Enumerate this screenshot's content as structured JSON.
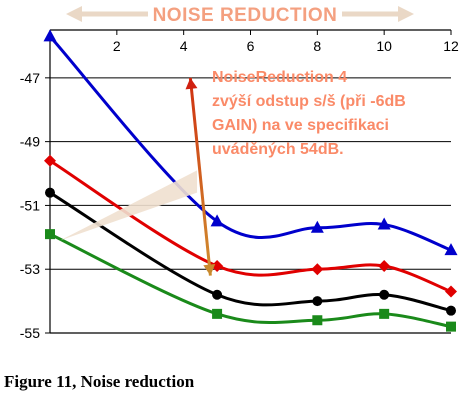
{
  "caption": "Figure 11, Noise reduction",
  "chart_data": {
    "type": "line",
    "title": "NOISE REDUCTION",
    "x": [
      0,
      5,
      8,
      10,
      12
    ],
    "x_ticks": [
      2,
      4,
      6,
      8,
      10,
      12
    ],
    "y_ticks": [
      -47,
      -49,
      -51,
      -53,
      -55
    ],
    "xlim": [
      0,
      12
    ],
    "ylim": [
      -55,
      -45.5
    ],
    "grid": "horizontal",
    "smooth": true,
    "series": [
      {
        "color": "#0000cc",
        "marker": "triangle",
        "values": [
          -45.7,
          -51.5,
          -51.7,
          -51.6,
          -52.4
        ]
      },
      {
        "color": "#e00000",
        "marker": "diamond",
        "values": [
          -49.6,
          -52.9,
          -53.0,
          -52.9,
          -53.7
        ]
      },
      {
        "color": "#000000",
        "marker": "circle",
        "values": [
          -50.6,
          -53.8,
          -54.0,
          -53.8,
          -54.3
        ]
      },
      {
        "color": "#1a8a1a",
        "marker": "square",
        "values": [
          -51.9,
          -54.4,
          -54.6,
          -54.4,
          -54.8
        ]
      }
    ],
    "annotation": {
      "lines": [
        "NoiseReduction 4",
        "zvýší odstup s/š (při -6dB",
        "GAIN) na ve specifikaci",
        "uváděných 54dB."
      ],
      "arrow_from": [
        4.2,
        -47.0
      ],
      "arrow_to": [
        4.8,
        -53.2
      ]
    }
  }
}
